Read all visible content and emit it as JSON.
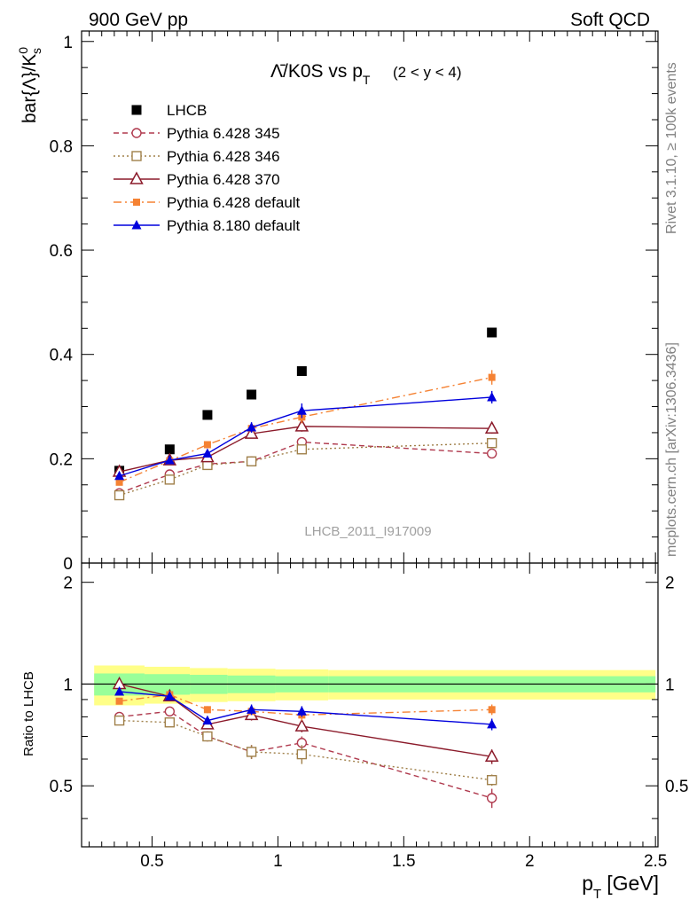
{
  "header": {
    "left": "900 GeV pp",
    "right": "Soft QCD"
  },
  "side_labels": {
    "rivet": "Rivet 3.1.10, ≥ 100k events",
    "mcplots": "mcplots.cern.ch [arXiv:1306.3436]"
  },
  "watermark": "LHCB_2011_I917009",
  "colors": {
    "lhcb": "#000000",
    "p345": "#b03a4e",
    "p346": "#a0804a",
    "p370": "#8b1a2a",
    "p6def": "#f58233",
    "p8def": "#0000dd",
    "band_inner": "#99ff99",
    "band_outer": "#ffff88"
  },
  "chart_data": [
    {
      "panel": "main",
      "type": "scatter",
      "title_main": "Λ̄/K0S vs p",
      "title_sub": "T",
      "title_range": "(2 < y < 4)",
      "ylabel": "bar{Λ}/K",
      "ylabel_sup": "0",
      "ylabel_sub": "s",
      "ylim": [
        0,
        1.02
      ],
      "yticks": [
        0,
        0.2,
        0.4,
        0.6,
        0.8,
        1
      ],
      "ytick_labels": [
        "0",
        "0.2",
        "0.4",
        "0.6",
        "0.8",
        "1"
      ],
      "xlim": [
        0.22,
        2.51
      ],
      "x": [
        0.37,
        0.57,
        0.72,
        0.895,
        1.095,
        1.85
      ],
      "series": [
        {
          "name": "LHCB",
          "key": "lhcb",
          "marker": "square-filled",
          "line": "none",
          "values": [
            0.177,
            0.218,
            0.284,
            0.323,
            0.368,
            0.442
          ],
          "errors": [
            0.004,
            0.004,
            0.005,
            0.006,
            0.007,
            0.008
          ]
        },
        {
          "name": "Pythia 6.428 345",
          "key": "p345",
          "marker": "circle-open",
          "line": "dashed",
          "values": [
            0.134,
            0.17,
            0.19,
            0.195,
            0.232,
            0.21
          ],
          "errors": [
            0.003,
            0.004,
            0.004,
            0.005,
            0.008,
            0.008
          ]
        },
        {
          "name": "Pythia 6.428 346",
          "key": "p346",
          "marker": "square-open",
          "line": "dotted",
          "values": [
            0.13,
            0.16,
            0.188,
            0.195,
            0.218,
            0.23
          ],
          "errors": [
            0.003,
            0.004,
            0.004,
            0.005,
            0.008,
            0.008
          ]
        },
        {
          "name": "Pythia 6.428 370",
          "key": "p370",
          "marker": "triangle-open",
          "line": "solid",
          "values": [
            0.175,
            0.197,
            0.203,
            0.248,
            0.262,
            0.258
          ],
          "errors": [
            0.004,
            0.004,
            0.005,
            0.006,
            0.01,
            0.01
          ]
        },
        {
          "name": "Pythia 6.428 default",
          "key": "p6def",
          "marker": "square-filled-small",
          "line": "dashdot",
          "values": [
            0.155,
            0.196,
            0.227,
            0.258,
            0.28,
            0.356
          ],
          "errors": [
            0.004,
            0.004,
            0.005,
            0.006,
            0.012,
            0.014
          ]
        },
        {
          "name": "Pythia 8.180 default",
          "key": "p8def",
          "marker": "triangle-filled",
          "line": "solid",
          "values": [
            0.167,
            0.197,
            0.21,
            0.26,
            0.292,
            0.318
          ],
          "errors": [
            0.004,
            0.004,
            0.005,
            0.01,
            0.014,
            0.012
          ]
        }
      ]
    },
    {
      "panel": "ratio",
      "type": "line",
      "ylabel": "Ratio to LHCB",
      "xlabel": "p",
      "xlabel_sub": "T",
      "xlabel_unit": "[GeV]",
      "ylim": [
        0.33,
        2.28
      ],
      "yticks": [
        0.5,
        1,
        2
      ],
      "ytick_labels": [
        "0.5",
        "1",
        "2"
      ],
      "xlim": [
        0.22,
        2.51
      ],
      "xticks": [
        0.5,
        1,
        1.5,
        2,
        2.5
      ],
      "xtick_labels": [
        "0.5",
        "1",
        "1.5",
        "2",
        "2.5"
      ],
      "band_edges": [
        0.27,
        0.47,
        0.65,
        0.8,
        0.99,
        1.2,
        2.5
      ],
      "band_inner": [
        0.075,
        0.07,
        0.065,
        0.06,
        0.055,
        0.055
      ],
      "band_outer": [
        0.135,
        0.125,
        0.115,
        0.11,
        0.105,
        0.1
      ],
      "x": [
        0.37,
        0.57,
        0.72,
        0.895,
        1.095,
        1.85
      ],
      "series": [
        {
          "name": "Pythia 6.428 345",
          "key": "p345",
          "marker": "circle-open",
          "line": "dashed",
          "values": [
            0.8,
            0.83,
            0.7,
            0.63,
            0.67,
            0.46
          ],
          "errors": [
            0.02,
            0.02,
            0.02,
            0.03,
            0.03,
            0.03
          ]
        },
        {
          "name": "Pythia 6.428 346",
          "key": "p346",
          "marker": "square-open",
          "line": "dotted",
          "values": [
            0.78,
            0.77,
            0.7,
            0.63,
            0.62,
            0.52
          ],
          "errors": [
            0.02,
            0.02,
            0.02,
            0.03,
            0.04,
            0.02
          ]
        },
        {
          "name": "Pythia 6.428 370",
          "key": "p370",
          "marker": "triangle-open",
          "line": "solid",
          "values": [
            1.0,
            0.92,
            0.76,
            0.81,
            0.75,
            0.61
          ],
          "errors": [
            0.02,
            0.02,
            0.02,
            0.03,
            0.03,
            0.03
          ]
        },
        {
          "name": "Pythia 6.428 default",
          "key": "p6def",
          "marker": "square-filled-small",
          "line": "dashdot",
          "values": [
            0.89,
            0.93,
            0.84,
            0.83,
            0.81,
            0.84
          ],
          "errors": [
            0.02,
            0.02,
            0.02,
            0.02,
            0.03,
            0.03
          ]
        },
        {
          "name": "Pythia 8.180 default",
          "key": "p8def",
          "marker": "triangle-filled",
          "line": "solid",
          "values": [
            0.95,
            0.92,
            0.78,
            0.84,
            0.83,
            0.76
          ],
          "errors": [
            0.02,
            0.02,
            0.02,
            0.03,
            0.03,
            0.03
          ]
        }
      ]
    }
  ]
}
